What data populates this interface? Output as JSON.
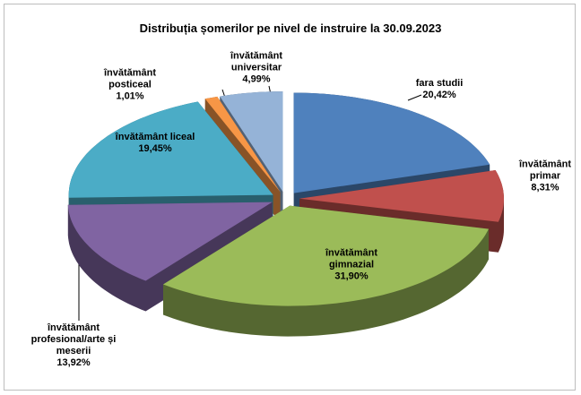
{
  "chart_data": {
    "type": "pie3d",
    "title": "Distribuția șomerilor pe nivel de instruire la 30.09.2023",
    "categories": [
      "fara studii",
      "învătământ primar",
      "învătământ gimnazial",
      "învătământ profesional/arte și meserii",
      "învătământ liceal",
      "învătământ posticeal",
      "învătământ universitar"
    ],
    "values": [
      20.42,
      8.31,
      31.9,
      13.92,
      19.45,
      1.01,
      4.99
    ],
    "value_labels": [
      "20,42%",
      "8,31%",
      "31,90%",
      "13,92%",
      "19,45%",
      "1,01%",
      "4,99%"
    ],
    "colors": [
      "#4f81bd",
      "#c0504d",
      "#9bbb59",
      "#8064a2",
      "#4bacc6",
      "#f79646",
      "#95b3d7"
    ]
  }
}
